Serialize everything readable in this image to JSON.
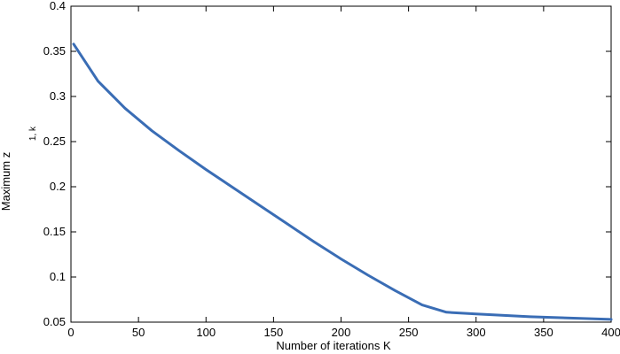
{
  "chart_data": {
    "type": "line",
    "title": "",
    "xlabel": "Number of iterations K",
    "ylabel": "Maximum z",
    "ylabel_subscript": "1, k",
    "xlim": [
      0,
      400
    ],
    "ylim": [
      0.05,
      0.4
    ],
    "xticks": [
      0,
      50,
      100,
      150,
      200,
      250,
      300,
      350,
      400
    ],
    "xtick_labels": [
      "0",
      "50",
      "100",
      "150",
      "200",
      "250",
      "300",
      "350",
      "400"
    ],
    "yticks": [
      0.05,
      0.1,
      0.15,
      0.2,
      0.25,
      0.3,
      0.35,
      0.4
    ],
    "ytick_labels": [
      "0.05",
      "0.1",
      "0.15",
      "0.2",
      "0.25",
      "0.3",
      "0.35",
      "0.4"
    ],
    "grid": false,
    "legend": "none",
    "line_color": "#3a6db5",
    "series": [
      {
        "x": [
          2,
          20,
          40,
          60,
          80,
          100,
          120,
          140,
          160,
          180,
          200,
          220,
          240,
          260,
          278,
          300,
          340,
          400
        ],
        "y": [
          0.358,
          0.317,
          0.287,
          0.262,
          0.24,
          0.219,
          0.199,
          0.179,
          0.159,
          0.139,
          0.12,
          0.102,
          0.085,
          0.069,
          0.061,
          0.059,
          0.056,
          0.053
        ]
      }
    ]
  }
}
